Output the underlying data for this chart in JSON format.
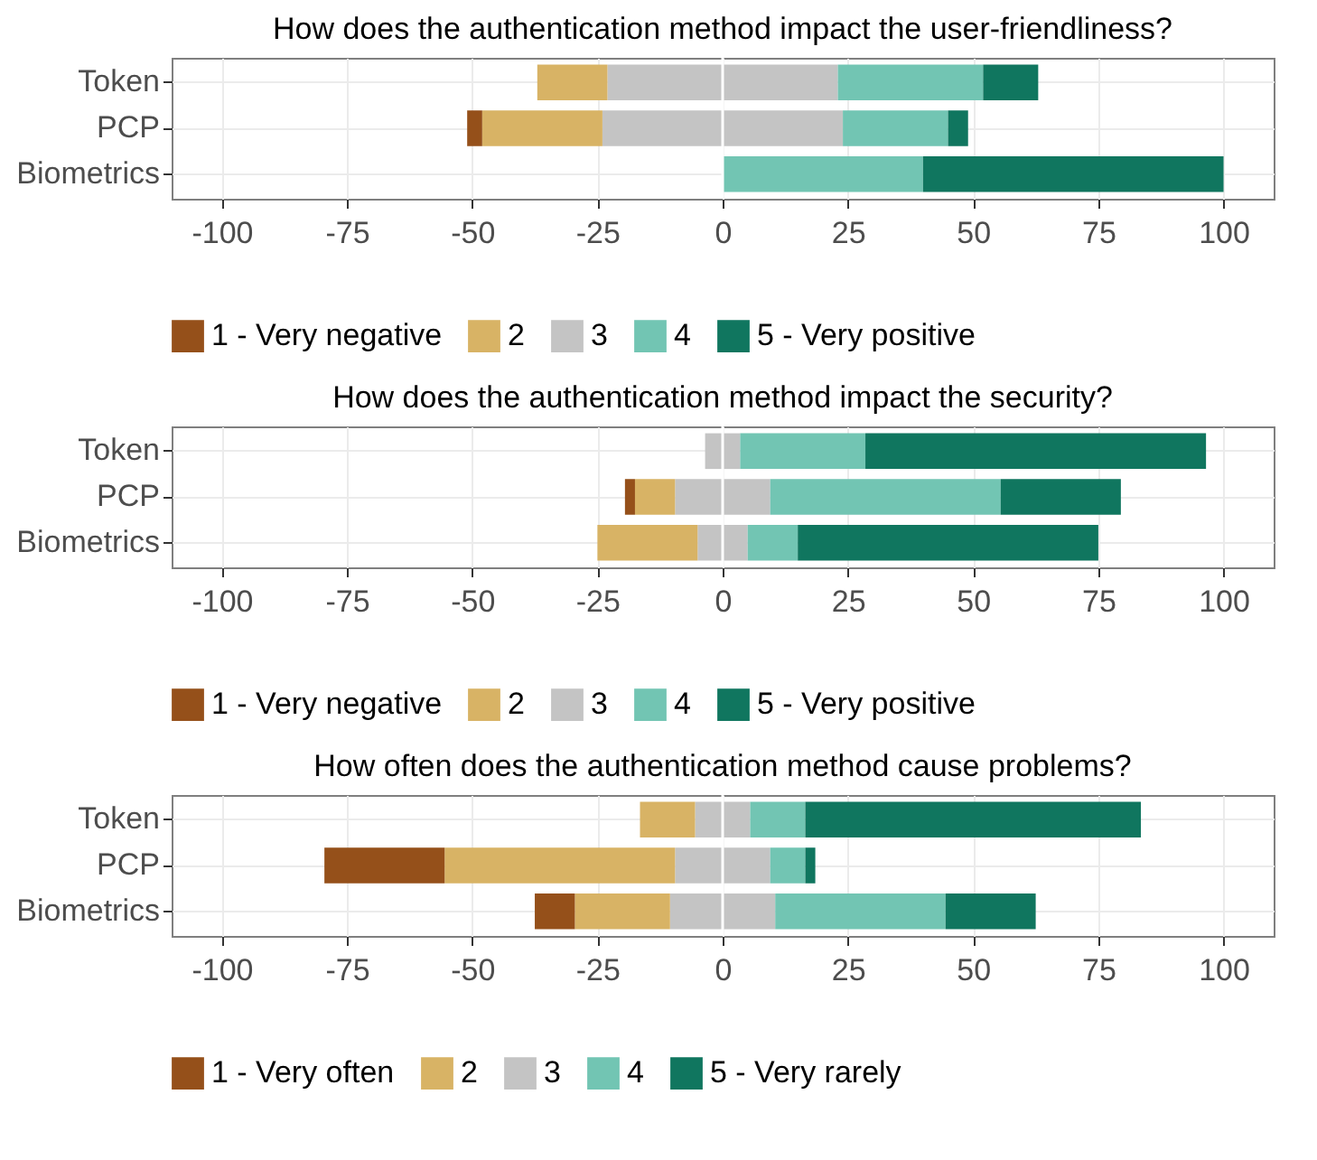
{
  "chart_data": [
    {
      "type": "bar",
      "orientation": "horizontal",
      "stacked": true,
      "title": "How does the authentication method impact the user-friendliness?",
      "categories": [
        "Token",
        "PCP",
        "Biometrics"
      ],
      "series": [
        {
          "color": "#c4c4c4",
          "values": [
            -23,
            -24,
            0
          ]
        },
        {
          "name": "2",
          "color": "#d8b365",
          "values": [
            -14,
            -24,
            0
          ]
        },
        {
          "name": "1 - Very negative",
          "color": "#95501a",
          "values": [
            0,
            -3,
            0
          ]
        },
        {
          "name": "3",
          "color": "#c4c4c4",
          "values": [
            23,
            24,
            0
          ]
        },
        {
          "name": "4",
          "color": "#72c5b3",
          "values": [
            29,
            21,
            40
          ]
        },
        {
          "name": "5 - Very positive",
          "color": "#10765f",
          "values": [
            11,
            4,
            60
          ]
        }
      ],
      "xlim": [
        -110,
        110
      ],
      "xticks": [
        -100,
        -75,
        -50,
        -25,
        0,
        25,
        50,
        75,
        100
      ],
      "grid": true,
      "legend": "bottom",
      "ref_lines": [
        {
          "axis": "x",
          "value": 0,
          "color": "#ffffff"
        }
      ]
    },
    {
      "type": "bar",
      "orientation": "horizontal",
      "stacked": true,
      "title": "How does the authentication method impact the security?",
      "categories": [
        "Token",
        "PCP",
        "Biometrics"
      ],
      "series": [
        {
          "color": "#c4c4c4",
          "values": [
            -3.5,
            -9.5,
            -5
          ]
        },
        {
          "name": "2",
          "color": "#d8b365",
          "values": [
            0,
            -8,
            -20
          ]
        },
        {
          "name": "1 - Very negative",
          "color": "#95501a",
          "values": [
            0,
            -2,
            0
          ]
        },
        {
          "name": "3",
          "color": "#c4c4c4",
          "values": [
            3.5,
            9.5,
            5
          ]
        },
        {
          "name": "4",
          "color": "#72c5b3",
          "values": [
            25,
            46,
            10
          ]
        },
        {
          "name": "5 - Very positive",
          "color": "#10765f",
          "values": [
            68,
            24,
            60
          ]
        }
      ],
      "xlim": [
        -110,
        110
      ],
      "xticks": [
        -100,
        -75,
        -50,
        -25,
        0,
        25,
        50,
        75,
        100
      ],
      "grid": true,
      "legend": "bottom",
      "ref_lines": [
        {
          "axis": "x",
          "value": 0,
          "color": "#ffffff"
        }
      ]
    },
    {
      "type": "bar",
      "orientation": "horizontal",
      "stacked": true,
      "title": "How often does the authentication method cause problems?",
      "categories": [
        "Token",
        "PCP",
        "Biometrics"
      ],
      "series": [
        {
          "color": "#c4c4c4",
          "values": [
            -5.5,
            -9.5,
            -10.5
          ]
        },
        {
          "name": "2",
          "color": "#d8b365",
          "values": [
            -11,
            -46,
            -19
          ]
        },
        {
          "name": "1 - Very often",
          "color": "#95501a",
          "values": [
            0,
            -24,
            -8
          ]
        },
        {
          "name": "3",
          "color": "#c4c4c4",
          "values": [
            5.5,
            9.5,
            10.5
          ]
        },
        {
          "name": "4",
          "color": "#72c5b3",
          "values": [
            11,
            7,
            34
          ]
        },
        {
          "name": "5 - Very rarely",
          "color": "#10765f",
          "values": [
            67,
            2,
            18
          ]
        }
      ],
      "xlim": [
        -110,
        110
      ],
      "xticks": [
        -100,
        -75,
        -50,
        -25,
        0,
        25,
        50,
        75,
        100
      ],
      "grid": true,
      "legend": "bottom",
      "ref_lines": [
        {
          "axis": "x",
          "value": 0,
          "color": "#ffffff"
        }
      ]
    }
  ]
}
